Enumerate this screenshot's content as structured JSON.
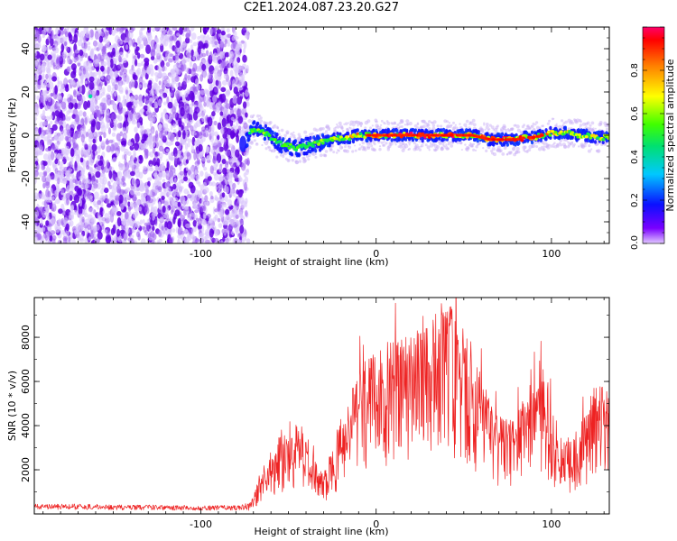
{
  "title": "C2E1.2024.087.23.20.G27",
  "colors": {
    "noise_purple": "#6a00e8",
    "track_red": "#e81c1c",
    "snr_line": "#ee2222",
    "axis": "#000000"
  },
  "chart_data": [
    {
      "type": "heatmap",
      "xlabel": "Height of straight line (km)",
      "ylabel": "Frequency (Hz)",
      "xlim": [
        -195,
        133
      ],
      "ylim": [
        -50,
        50
      ],
      "xticks": [
        -100,
        0,
        100
      ],
      "xtick_labels": [
        "-100",
        "0",
        "100"
      ],
      "yticks": [
        -40,
        -20,
        0,
        20,
        40
      ],
      "ytick_labels": [
        "-40",
        "-20",
        "0",
        "20",
        "40"
      ],
      "grid": false,
      "colorbar": {
        "label": "Normalized spectral amplitude",
        "range": [
          0,
          1
        ],
        "ticks": [
          0.0,
          0.2,
          0.4,
          0.6,
          0.8
        ],
        "tick_labels": [
          "0.0",
          "0.2",
          "0.4",
          "0.6",
          "0.8"
        ],
        "colormap": "rainbow"
      },
      "regions": [
        {
          "kind": "broadband-noise",
          "x_range": [
            -195,
            -74
          ],
          "freq_range": [
            -50,
            50
          ],
          "amplitude": 0.1
        },
        {
          "kind": "signal-track",
          "x_range": [
            -74,
            133
          ],
          "amplitude_range": [
            0.2,
            1.0
          ]
        }
      ],
      "track": [
        {
          "x": -74,
          "y": -2,
          "a": 0.15
        },
        {
          "x": -70,
          "y": 3,
          "a": 0.45
        },
        {
          "x": -65,
          "y": 2,
          "a": 0.5
        },
        {
          "x": -60,
          "y": -1,
          "a": 0.4
        },
        {
          "x": -55,
          "y": -4,
          "a": 0.42
        },
        {
          "x": -50,
          "y": -5,
          "a": 0.45
        },
        {
          "x": -45,
          "y": -6,
          "a": 0.42
        },
        {
          "x": -40,
          "y": -5,
          "a": 0.4
        },
        {
          "x": -35,
          "y": -4,
          "a": 0.45
        },
        {
          "x": -30,
          "y": -3,
          "a": 0.5
        },
        {
          "x": -25,
          "y": -2,
          "a": 0.55
        },
        {
          "x": -20,
          "y": -1,
          "a": 0.6
        },
        {
          "x": -15,
          "y": -1,
          "a": 0.65
        },
        {
          "x": -10,
          "y": 0,
          "a": 0.7
        },
        {
          "x": -5,
          "y": 0,
          "a": 0.8
        },
        {
          "x": 0,
          "y": 0,
          "a": 0.85
        },
        {
          "x": 5,
          "y": 0,
          "a": 0.8
        },
        {
          "x": 10,
          "y": 0,
          "a": 0.88
        },
        {
          "x": 15,
          "y": 0,
          "a": 0.85
        },
        {
          "x": 20,
          "y": 0,
          "a": 0.9
        },
        {
          "x": 25,
          "y": 0,
          "a": 0.92
        },
        {
          "x": 30,
          "y": 0,
          "a": 0.92
        },
        {
          "x": 35,
          "y": 0,
          "a": 0.9
        },
        {
          "x": 40,
          "y": 0,
          "a": 0.95
        },
        {
          "x": 45,
          "y": 0,
          "a": 0.92
        },
        {
          "x": 50,
          "y": 0,
          "a": 0.9
        },
        {
          "x": 55,
          "y": 0,
          "a": 0.85
        },
        {
          "x": 60,
          "y": -1,
          "a": 0.8
        },
        {
          "x": 65,
          "y": -2,
          "a": 0.82
        },
        {
          "x": 70,
          "y": -2,
          "a": 0.85
        },
        {
          "x": 75,
          "y": -2,
          "a": 0.85
        },
        {
          "x": 80,
          "y": -2,
          "a": 0.82
        },
        {
          "x": 85,
          "y": -1,
          "a": 0.78
        },
        {
          "x": 90,
          "y": -1,
          "a": 0.75
        },
        {
          "x": 95,
          "y": 0,
          "a": 0.75
        },
        {
          "x": 100,
          "y": 1,
          "a": 0.7
        },
        {
          "x": 105,
          "y": 1,
          "a": 0.65
        },
        {
          "x": 110,
          "y": 1,
          "a": 0.6
        },
        {
          "x": 115,
          "y": 0,
          "a": 0.62
        },
        {
          "x": 120,
          "y": 0,
          "a": 0.6
        },
        {
          "x": 125,
          "y": -1,
          "a": 0.58
        },
        {
          "x": 130,
          "y": -1,
          "a": 0.55
        },
        {
          "x": 133,
          "y": -1,
          "a": 0.5
        }
      ]
    },
    {
      "type": "line",
      "xlabel": "Height of straight line (km)",
      "ylabel": "SNR (10 * v/v)",
      "xlim": [
        -195,
        133
      ],
      "ylim": [
        0,
        9800
      ],
      "xticks": [
        -100,
        0,
        100
      ],
      "xtick_labels": [
        "-100",
        "0",
        "100"
      ],
      "yticks": [
        2000,
        4000,
        6000,
        8000
      ],
      "ytick_labels": [
        "2000",
        "4000",
        "6000",
        "8000"
      ],
      "grid": false,
      "series": [
        {
          "color": "#ee2222",
          "envelope": [
            {
              "x": -195,
              "y": 350
            },
            {
              "x": -170,
              "y": 350
            },
            {
              "x": -140,
              "y": 320
            },
            {
              "x": -110,
              "y": 300
            },
            {
              "x": -80,
              "y": 300
            },
            {
              "x": -72,
              "y": 400
            },
            {
              "x": -65,
              "y": 1400
            },
            {
              "x": -60,
              "y": 2400
            },
            {
              "x": -55,
              "y": 2700
            },
            {
              "x": -50,
              "y": 2600
            },
            {
              "x": -45,
              "y": 3300
            },
            {
              "x": -40,
              "y": 2900
            },
            {
              "x": -35,
              "y": 1900
            },
            {
              "x": -30,
              "y": 1500
            },
            {
              "x": -25,
              "y": 2200
            },
            {
              "x": -20,
              "y": 3300
            },
            {
              "x": -15,
              "y": 4300
            },
            {
              "x": -10,
              "y": 5200
            },
            {
              "x": -5,
              "y": 5600
            },
            {
              "x": 0,
              "y": 5800
            },
            {
              "x": 5,
              "y": 5700
            },
            {
              "x": 10,
              "y": 6100
            },
            {
              "x": 15,
              "y": 6300
            },
            {
              "x": 20,
              "y": 6500
            },
            {
              "x": 25,
              "y": 6800
            },
            {
              "x": 30,
              "y": 7100
            },
            {
              "x": 35,
              "y": 7400
            },
            {
              "x": 40,
              "y": 7600
            },
            {
              "x": 45,
              "y": 7100
            },
            {
              "x": 50,
              "y": 6600
            },
            {
              "x": 55,
              "y": 5700
            },
            {
              "x": 60,
              "y": 4800
            },
            {
              "x": 65,
              "y": 4000
            },
            {
              "x": 70,
              "y": 3600
            },
            {
              "x": 75,
              "y": 3400
            },
            {
              "x": 80,
              "y": 3500
            },
            {
              "x": 85,
              "y": 4100
            },
            {
              "x": 90,
              "y": 4800
            },
            {
              "x": 95,
              "y": 5200
            },
            {
              "x": 100,
              "y": 3700
            },
            {
              "x": 105,
              "y": 2900
            },
            {
              "x": 110,
              "y": 2700
            },
            {
              "x": 115,
              "y": 3000
            },
            {
              "x": 120,
              "y": 3800
            },
            {
              "x": 125,
              "y": 4500
            },
            {
              "x": 130,
              "y": 4600
            },
            {
              "x": 133,
              "y": 4000
            }
          ]
        }
      ]
    }
  ]
}
